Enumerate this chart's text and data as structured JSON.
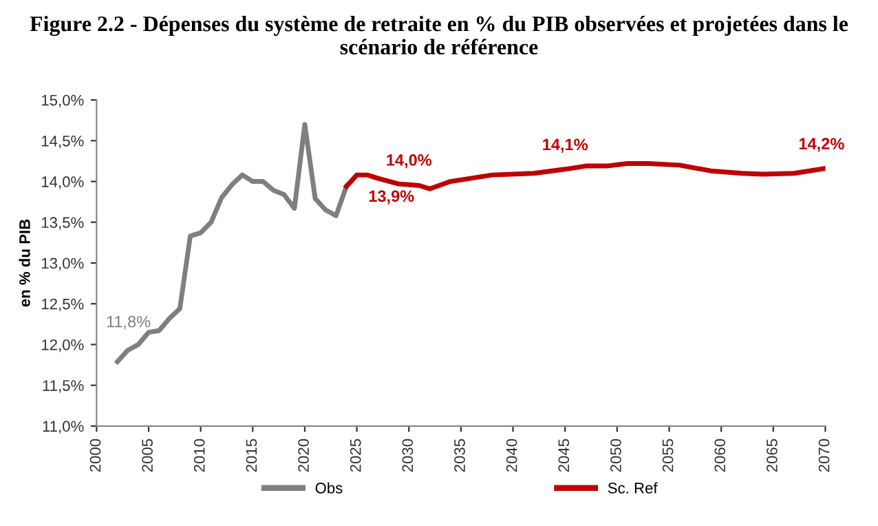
{
  "chart_data": {
    "type": "line",
    "title": "Figure 2.2 - Dépenses du système de retraite en % du PIB observées et projetées dans le scénario de référence",
    "ylabel": "en % du PIB",
    "series": [
      {
        "name": "Obs",
        "color": "#7f7f7f",
        "x": [
          2002,
          2003,
          2004,
          2005,
          2006,
          2007,
          2008,
          2009,
          2010,
          2011,
          2012,
          2013,
          2014,
          2015,
          2016,
          2017,
          2018,
          2019,
          2020,
          2021,
          2022,
          2023,
          2024
        ],
        "values": [
          11.79,
          11.93,
          12.0,
          12.15,
          12.17,
          12.32,
          12.44,
          13.33,
          13.37,
          13.5,
          13.8,
          13.96,
          14.08,
          14.0,
          14.0,
          13.89,
          13.84,
          13.67,
          14.7,
          13.79,
          13.65,
          13.58,
          13.94
        ]
      },
      {
        "name": "Sc. Ref",
        "color": "#c00000",
        "x": [
          2024,
          2025,
          2026,
          2027,
          2029,
          2030,
          2031,
          2032,
          2034,
          2036,
          2038,
          2042,
          2045,
          2047,
          2049,
          2051,
          2053,
          2056,
          2059,
          2062,
          2064,
          2067,
          2070
        ],
        "values": [
          13.94,
          14.08,
          14.08,
          14.04,
          13.97,
          13.96,
          13.95,
          13.91,
          14.0,
          14.04,
          14.08,
          14.1,
          14.15,
          14.19,
          14.19,
          14.22,
          14.22,
          14.2,
          14.13,
          14.1,
          14.09,
          14.1,
          14.16
        ]
      }
    ],
    "annotations": [
      {
        "text": "11,8%",
        "x": 2002,
        "y": 11.79
      },
      {
        "text": "13,9%",
        "x": 2025,
        "y": 14.08
      },
      {
        "text": "14,0%",
        "x": 2030,
        "y": 13.96
      },
      {
        "text": "14,1%",
        "x": 2045,
        "y": 14.15
      },
      {
        "text": "14,2%",
        "x": 2070,
        "y": 14.16
      }
    ],
    "xlim": [
      2000,
      2070
    ],
    "xticks": [
      2000,
      2005,
      2010,
      2015,
      2020,
      2025,
      2030,
      2035,
      2040,
      2045,
      2050,
      2055,
      2060,
      2065,
      2070
    ],
    "ylim": [
      11.0,
      15.0
    ],
    "yticks": [
      {
        "value": 11.0,
        "label": "11,0%"
      },
      {
        "value": 11.5,
        "label": "11,5%"
      },
      {
        "value": 12.0,
        "label": "12,0%"
      },
      {
        "value": 12.5,
        "label": "12,5%"
      },
      {
        "value": 13.0,
        "label": "13,0%"
      },
      {
        "value": 13.5,
        "label": "13,5%"
      },
      {
        "value": 14.0,
        "label": "14,0%"
      },
      {
        "value": 14.5,
        "label": "14,5%"
      },
      {
        "value": 15.0,
        "label": "15,0%"
      }
    ],
    "grid": false,
    "legend": "bottom",
    "marker": "none",
    "line_style": "solid"
  }
}
